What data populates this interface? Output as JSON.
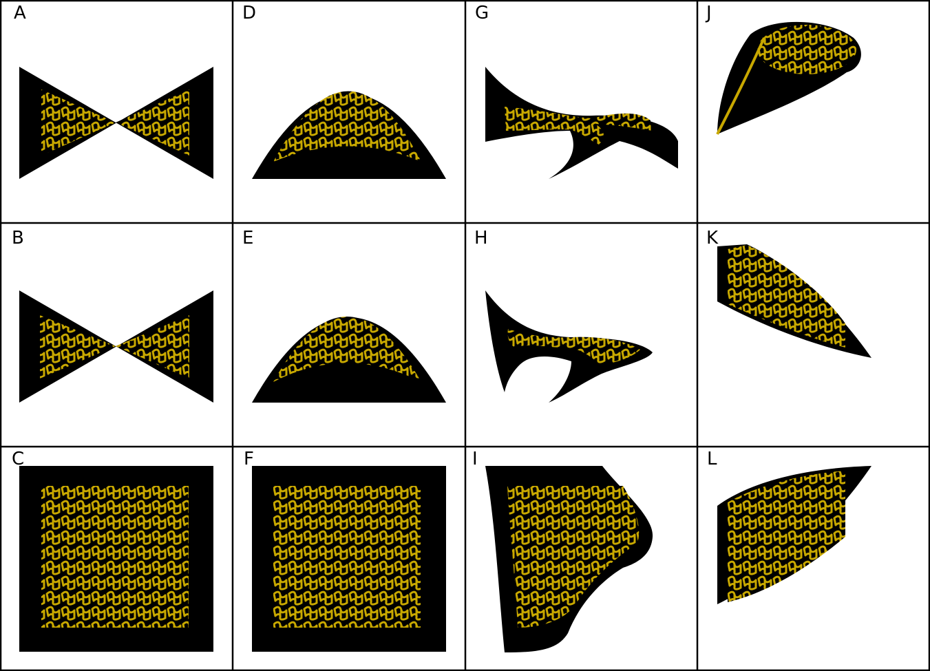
{
  "figure": {
    "colors": {
      "frame": "#000000",
      "body": "#000000",
      "lattice": "#c8a800",
      "background": "#ffffff"
    },
    "layout": {
      "rows": 3,
      "cols": 4
    },
    "panels": [
      {
        "label": "A",
        "shape": "bowtie"
      },
      {
        "label": "B",
        "shape": "bowtie"
      },
      {
        "label": "C",
        "shape": "square"
      },
      {
        "label": "D",
        "shape": "dome"
      },
      {
        "label": "E",
        "shape": "dome"
      },
      {
        "label": "F",
        "shape": "square"
      },
      {
        "label": "G",
        "shape": "twisted-saddle"
      },
      {
        "label": "H",
        "shape": "curled-saddle"
      },
      {
        "label": "I",
        "shape": "warped-sheet"
      },
      {
        "label": "J",
        "shape": "rolled-cone"
      },
      {
        "label": "K",
        "shape": "tilted-wedge"
      },
      {
        "label": "L",
        "shape": "fanned-wedge"
      }
    ]
  }
}
